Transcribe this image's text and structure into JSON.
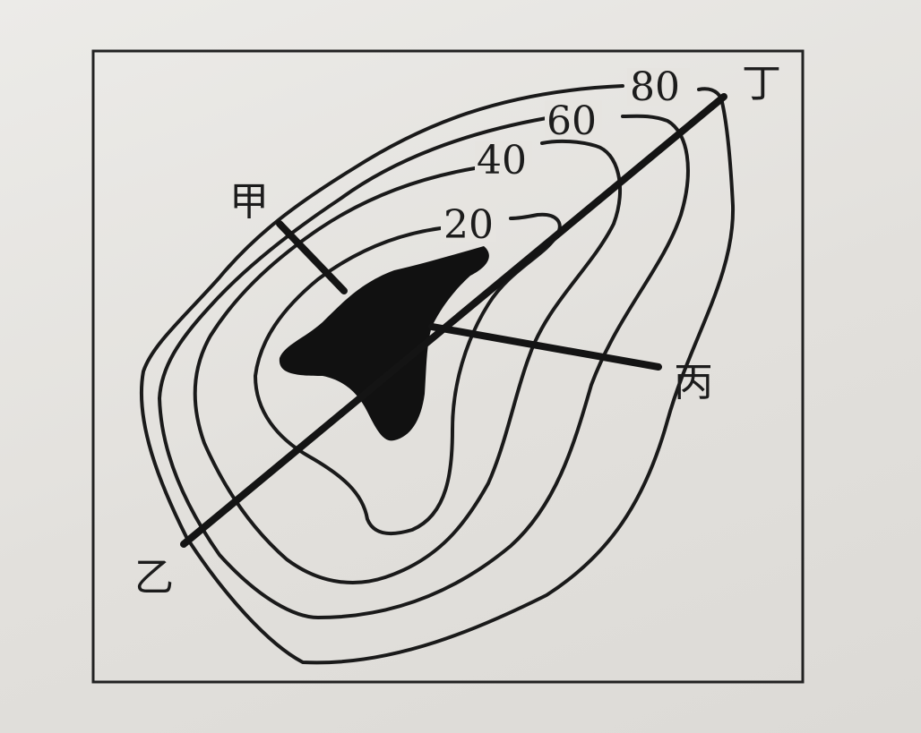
{
  "map": {
    "points": {
      "jia": "甲",
      "yi": "乙",
      "bing": "丙",
      "ding": "丁"
    },
    "contours": [
      {
        "label": "20"
      },
      {
        "label": "40"
      },
      {
        "label": "60"
      },
      {
        "label": "80"
      }
    ],
    "colors": {
      "ink": "#1a1a1a",
      "background": "#e6e4e0"
    }
  }
}
